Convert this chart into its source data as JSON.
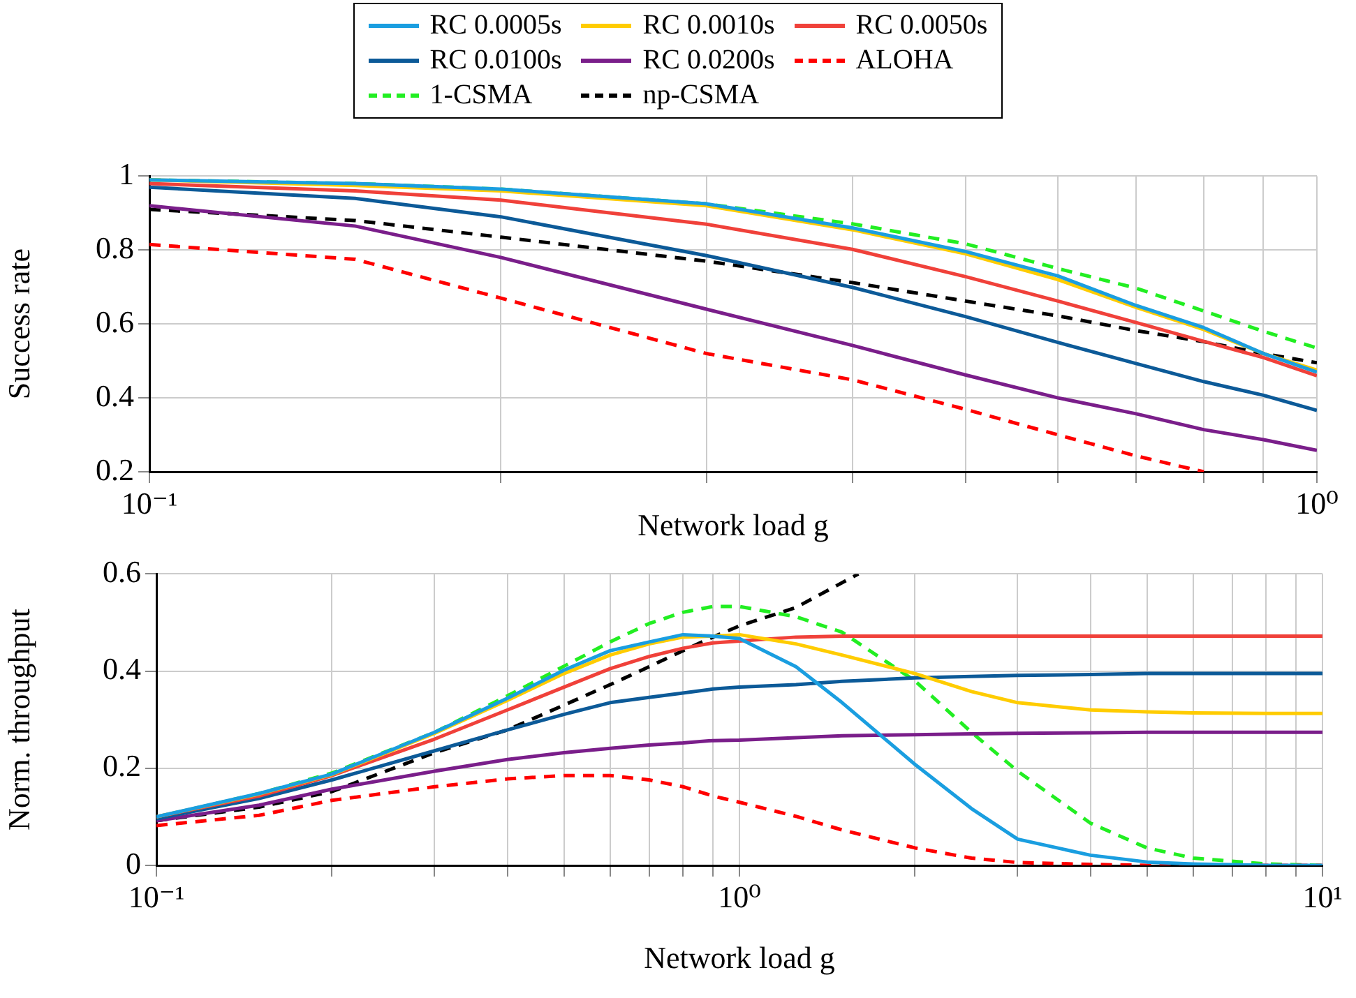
{
  "chart_data": [
    {
      "type": "line",
      "xlabel": "Network load g",
      "ylabel": "Success rate",
      "log": "x",
      "grid": true,
      "legend": "top",
      "xlim": [
        0.1,
        1
      ],
      "ylim": [
        0.2,
        1
      ],
      "xticks": [
        {
          "value": 0.1,
          "label": "10⁻¹"
        },
        {
          "value": 0.2,
          "label": null
        },
        {
          "value": 0.3,
          "label": null
        },
        {
          "value": 0.4,
          "label": null
        },
        {
          "value": 0.5,
          "label": null
        },
        {
          "value": 0.6,
          "label": null
        },
        {
          "value": 0.7,
          "label": null
        },
        {
          "value": 0.8,
          "label": null
        },
        {
          "value": 0.9,
          "label": null
        },
        {
          "value": 1,
          "label": "10⁰"
        }
      ],
      "yticks": [
        0.2,
        0.4,
        0.6,
        0.8,
        1
      ],
      "x": [
        0.1,
        0.15,
        0.2,
        0.3,
        0.4,
        0.5,
        0.6,
        0.7,
        0.8,
        0.9,
        1
      ],
      "series": [
        {
          "name": "RC 0.0005s",
          "color": "#1a9ee0",
          "line_style": "solid",
          "values": [
            0.99,
            0.98,
            0.965,
            0.925,
            0.86,
            0.796,
            0.73,
            0.65,
            0.59,
            0.52,
            0.47
          ]
        },
        {
          "name": "RC 0.0010s",
          "color": "#ffcc00",
          "line_style": "solid",
          "values": [
            0.99,
            0.975,
            0.96,
            0.92,
            0.855,
            0.79,
            0.72,
            0.645,
            0.585,
            0.52,
            0.475
          ]
        },
        {
          "name": "RC 0.0050s",
          "color": "#f0413a",
          "line_style": "solid",
          "values": [
            0.98,
            0.96,
            0.935,
            0.87,
            0.802,
            0.728,
            0.662,
            0.604,
            0.553,
            0.509,
            0.46
          ]
        },
        {
          "name": "RC 0.0100s",
          "color": "#0c5a98",
          "line_style": "solid",
          "values": [
            0.97,
            0.94,
            0.89,
            0.785,
            0.699,
            0.62,
            0.55,
            0.493,
            0.444,
            0.407,
            0.366
          ]
        },
        {
          "name": "RC 0.0200s",
          "color": "#7a1e8a",
          "line_style": "solid",
          "values": [
            0.92,
            0.865,
            0.78,
            0.64,
            0.542,
            0.462,
            0.4,
            0.357,
            0.314,
            0.287,
            0.258
          ]
        },
        {
          "name": "ALOHA",
          "color": "#ff0000",
          "line_style": "dashed",
          "values": [
            0.815,
            0.775,
            0.67,
            0.52,
            0.449,
            0.369,
            0.3,
            0.243,
            0.2,
            null,
            null
          ]
        },
        {
          "name": "1-CSMA",
          "color": "#22ee22",
          "line_style": "dashed",
          "values": [
            0.99,
            0.98,
            0.965,
            0.925,
            0.871,
            0.817,
            0.75,
            0.697,
            0.635,
            0.58,
            0.535
          ]
        },
        {
          "name": "np-CSMA",
          "color": "#000000",
          "line_style": "dashed",
          "values": [
            0.91,
            0.88,
            0.835,
            0.77,
            0.712,
            0.662,
            0.622,
            0.582,
            0.552,
            0.52,
            0.495
          ]
        }
      ]
    },
    {
      "type": "line",
      "xlabel": "Network load g",
      "ylabel": "Norm. throughput",
      "log": "x",
      "grid": true,
      "xlim": [
        0.1,
        10
      ],
      "ylim": [
        0,
        0.6
      ],
      "xticks": [
        {
          "value": 0.1,
          "label": "10⁻¹"
        },
        {
          "value": 0.2,
          "label": null
        },
        {
          "value": 0.3,
          "label": null
        },
        {
          "value": 0.4,
          "label": null
        },
        {
          "value": 0.5,
          "label": null
        },
        {
          "value": 0.6,
          "label": null
        },
        {
          "value": 0.7,
          "label": null
        },
        {
          "value": 0.8,
          "label": null
        },
        {
          "value": 0.9,
          "label": null
        },
        {
          "value": 1,
          "label": "10⁰"
        },
        {
          "value": 2,
          "label": null
        },
        {
          "value": 3,
          "label": null
        },
        {
          "value": 4,
          "label": null
        },
        {
          "value": 5,
          "label": null
        },
        {
          "value": 6,
          "label": null
        },
        {
          "value": 7,
          "label": null
        },
        {
          "value": 8,
          "label": null
        },
        {
          "value": 9,
          "label": null
        },
        {
          "value": 10,
          "label": "10¹"
        }
      ],
      "yticks": [
        0,
        0.2,
        0.4,
        0.6
      ],
      "x": [
        0.1,
        0.15,
        0.2,
        0.3,
        0.4,
        0.5,
        0.6,
        0.7,
        0.8,
        0.9,
        1,
        1.25,
        1.5,
        2,
        2.5,
        3,
        4,
        5,
        6,
        8,
        10
      ],
      "series": [
        {
          "color": "#1a9ee0",
          "line_style": "solid",
          "values": [
            0.1,
            0.148,
            0.188,
            0.274,
            0.344,
            0.402,
            0.442,
            0.46,
            0.475,
            0.472,
            0.467,
            0.409,
            0.335,
            0.208,
            0.117,
            0.054,
            0.021,
            0.007,
            0.003,
            0,
            0
          ]
        },
        {
          "color": "#ffcc00",
          "line_style": "solid",
          "values": [
            0.1,
            0.147,
            0.187,
            0.272,
            0.34,
            0.395,
            0.433,
            0.456,
            0.47,
            0.472,
            0.475,
            0.456,
            0.433,
            0.395,
            0.358,
            0.335,
            0.32,
            0.316,
            0.314,
            0.313,
            0.313
          ]
        },
        {
          "color": "#f0413a",
          "line_style": "solid",
          "values": [
            0.1,
            0.143,
            0.185,
            0.26,
            0.32,
            0.367,
            0.405,
            0.43,
            0.447,
            0.458,
            0.462,
            0.47,
            0.472,
            0.472,
            0.472,
            0.472,
            0.472,
            0.472,
            0.472,
            0.472,
            0.472
          ]
        },
        {
          "color": "#0c5a98",
          "line_style": "solid",
          "values": [
            0.096,
            0.138,
            0.176,
            0.236,
            0.279,
            0.311,
            0.335,
            0.346,
            0.355,
            0.363,
            0.367,
            0.372,
            0.379,
            0.386,
            0.389,
            0.391,
            0.393,
            0.395,
            0.395,
            0.395,
            0.395
          ]
        },
        {
          "color": "#7a1e8a",
          "line_style": "solid",
          "values": [
            0.092,
            0.124,
            0.157,
            0.194,
            0.218,
            0.232,
            0.241,
            0.248,
            0.252,
            0.257,
            0.258,
            0.263,
            0.267,
            0.269,
            0.271,
            0.272,
            0.273,
            0.274,
            0.274,
            0.274,
            0.274
          ]
        },
        {
          "color": "#ff0000",
          "line_style": "dashed",
          "values": [
            0.082,
            0.103,
            0.134,
            0.162,
            0.178,
            0.185,
            0.185,
            0.176,
            0.162,
            0.143,
            0.13,
            0.101,
            0.073,
            0.036,
            0.015,
            0.006,
            0.002,
            0,
            0,
            0,
            0
          ]
        },
        {
          "color": "#22ee22",
          "line_style": "dashed",
          "values": [
            0.099,
            0.148,
            0.19,
            0.274,
            0.349,
            0.41,
            0.46,
            0.498,
            0.521,
            0.533,
            0.533,
            0.512,
            0.48,
            0.38,
            0.274,
            0.194,
            0.087,
            0.036,
            0.015,
            0.003,
            0
          ]
        },
        {
          "color": "#000000",
          "line_style": "dashed",
          "x": [
            0.1,
            0.15,
            0.2,
            0.3,
            0.4,
            0.5,
            0.6,
            0.7,
            0.8,
            0.9,
            1,
            1.25,
            1.6
          ],
          "values": [
            0.092,
            0.12,
            0.152,
            0.232,
            0.279,
            0.33,
            0.372,
            0.409,
            0.442,
            0.47,
            0.493,
            0.531,
            0.6
          ]
        }
      ]
    }
  ]
}
